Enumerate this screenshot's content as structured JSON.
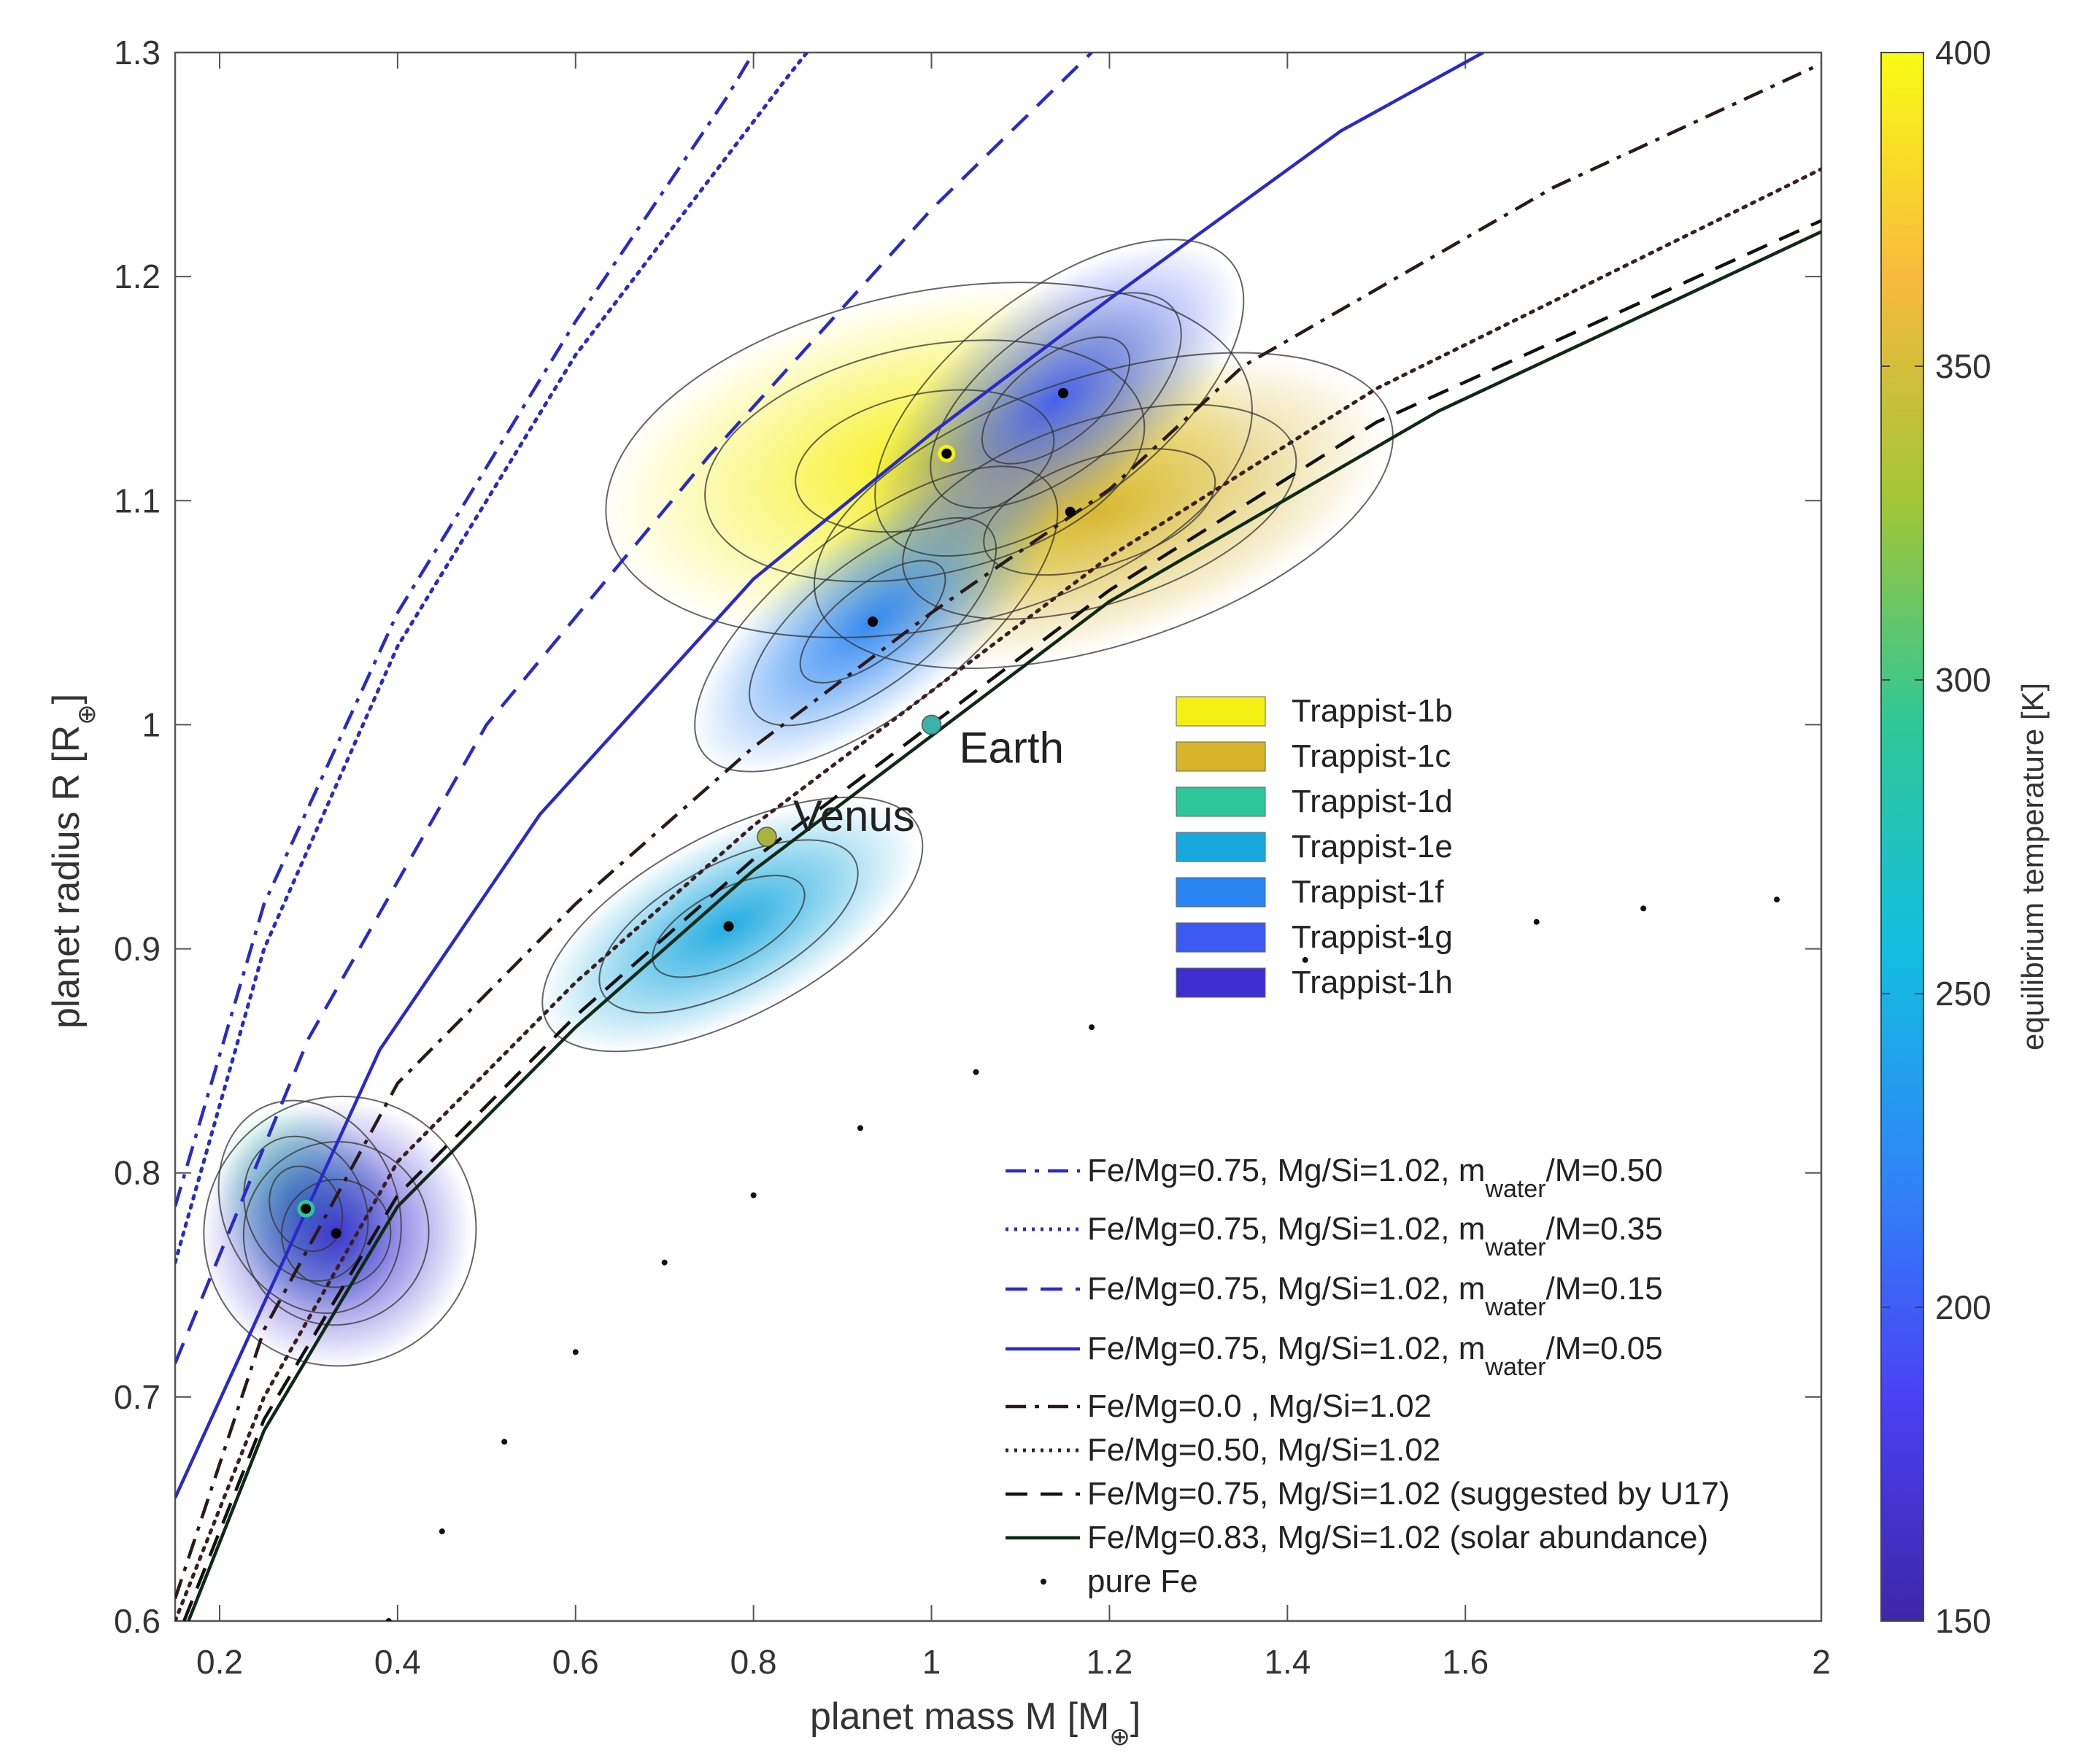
{
  "chart_data": {
    "type": "line",
    "xlabel": "planet mass M [M",
    "xlabel_sub": "⊕",
    "xlabel_end": "]",
    "ylabel": "planet radius R [R",
    "ylabel_sub": "⊕",
    "ylabel_end": "]",
    "xlim": [
      0.15,
      2.0
    ],
    "ylim": [
      0.6,
      1.3
    ],
    "xticks": [
      0.2,
      0.4,
      0.6,
      0.8,
      1.0,
      1.2,
      1.4,
      1.6,
      2.0
    ],
    "xtick_labels": [
      "0.2",
      "0.4",
      "0.6",
      "0.8",
      "1",
      "1.2",
      "1.4",
      "1.6",
      "2"
    ],
    "yticks": [
      0.6,
      0.7,
      0.8,
      0.9,
      1.0,
      1.1,
      1.2,
      1.3
    ],
    "ytick_labels": [
      "0.6",
      "0.7",
      "0.8",
      "0.9",
      "1",
      "1.1",
      "1.2",
      "1.3"
    ],
    "colorbar": {
      "label": "equilibrium temperature [K]",
      "range": [
        150,
        400
      ],
      "ticks": [
        "150",
        "200",
        "250",
        "300",
        "350",
        "400"
      ],
      "colormap": [
        "#3e26a8",
        "#4a41f4",
        "#2e87f7",
        "#13bee0",
        "#2ec797",
        "#a2c636",
        "#f7ba3d",
        "#f9fb15"
      ]
    },
    "series": [
      {
        "name": "Fe/Mg=0.75, Mg/Si=1.02, m",
        "sub": "water",
        "suffix": "/M=0.50",
        "style": "dashdot",
        "color": "#2a2ac8",
        "points": [
          [
            0.15,
            0.785
          ],
          [
            0.25,
            0.92
          ],
          [
            0.4,
            1.05
          ],
          [
            0.6,
            1.18
          ],
          [
            0.77,
            1.28
          ],
          [
            0.8,
            1.3
          ]
        ]
      },
      {
        "name": "Fe/Mg=0.75, Mg/Si=1.02, m",
        "sub": "water",
        "suffix": "/M=0.35",
        "style": "dotted",
        "color": "#2a2ac8",
        "points": [
          [
            0.15,
            0.76
          ],
          [
            0.25,
            0.9
          ],
          [
            0.4,
            1.035
          ],
          [
            0.6,
            1.165
          ],
          [
            0.84,
            1.29
          ],
          [
            0.86,
            1.3
          ]
        ]
      },
      {
        "name": "Fe/Mg=0.75, Mg/Si=1.02, m",
        "sub": "water",
        "suffix": "/M=0.15",
        "style": "dashed",
        "color": "#2a2ac8",
        "points": [
          [
            0.15,
            0.715
          ],
          [
            0.3,
            0.86
          ],
          [
            0.5,
            1.0
          ],
          [
            0.75,
            1.12
          ],
          [
            1.0,
            1.23
          ],
          [
            1.18,
            1.3
          ]
        ]
      },
      {
        "name": "Fe/Mg=0.75, Mg/Si=1.02, m",
        "sub": "water",
        "suffix": "/M=0.05",
        "style": "solid",
        "color": "#2a2ac8",
        "points": [
          [
            0.15,
            0.655
          ],
          [
            0.38,
            0.855
          ],
          [
            0.56,
            0.96
          ],
          [
            0.8,
            1.065
          ],
          [
            1.0,
            1.13
          ],
          [
            1.2,
            1.19
          ],
          [
            1.46,
            1.265
          ],
          [
            1.62,
            1.3
          ]
        ]
      },
      {
        "name": "Fe/Mg=0.0 , Mg/Si=1.02",
        "style": "dashdot",
        "color": "#2a1a1a",
        "points": [
          [
            0.15,
            0.61
          ],
          [
            0.25,
            0.73
          ],
          [
            0.4,
            0.84
          ],
          [
            0.6,
            0.92
          ],
          [
            0.8,
            0.99
          ],
          [
            1.0,
            1.05
          ],
          [
            1.2,
            1.105
          ],
          [
            1.35,
            1.16
          ],
          [
            1.7,
            1.24
          ],
          [
            2.0,
            1.295
          ]
        ]
      },
      {
        "name": "Fe/Mg=0.50, Mg/Si=1.02",
        "style": "dotted",
        "color": "#3a2020",
        "points": [
          [
            0.15,
            0.6
          ],
          [
            0.25,
            0.7
          ],
          [
            0.4,
            0.805
          ],
          [
            0.6,
            0.885
          ],
          [
            0.8,
            0.955
          ],
          [
            1.0,
            1.015
          ],
          [
            1.2,
            1.075
          ],
          [
            1.5,
            1.15
          ],
          [
            2.0,
            1.248
          ]
        ]
      },
      {
        "name": "Fe/Mg=0.75, Mg/Si=1.02 (suggested by U17)",
        "style": "dashed",
        "color": "#111111",
        "points": [
          [
            0.16,
            0.6
          ],
          [
            0.25,
            0.69
          ],
          [
            0.4,
            0.79
          ],
          [
            0.6,
            0.87
          ],
          [
            0.8,
            0.94
          ],
          [
            1.0,
            1.0
          ],
          [
            1.2,
            1.06
          ],
          [
            1.5,
            1.135
          ],
          [
            2.0,
            1.225
          ]
        ]
      },
      {
        "name": "Fe/Mg=0.83, Mg/Si=1.02 (solar abundance)",
        "style": "solid",
        "color": "#0f2a14",
        "points": [
          [
            0.165,
            0.6
          ],
          [
            0.25,
            0.685
          ],
          [
            0.4,
            0.785
          ],
          [
            0.6,
            0.865
          ],
          [
            0.8,
            0.935
          ],
          [
            1.0,
            0.995
          ],
          [
            1.2,
            1.055
          ],
          [
            1.57,
            1.14
          ],
          [
            2.0,
            1.22
          ]
        ]
      },
      {
        "name": "pure Fe",
        "style": "markers",
        "color": "#111111",
        "points": [
          [
            0.39,
            0.6
          ],
          [
            0.45,
            0.64
          ],
          [
            0.52,
            0.68
          ],
          [
            0.6,
            0.72
          ],
          [
            0.7,
            0.76
          ],
          [
            0.8,
            0.79
          ],
          [
            0.92,
            0.82
          ],
          [
            1.05,
            0.845
          ],
          [
            1.18,
            0.865
          ],
          [
            1.3,
            0.88
          ],
          [
            1.42,
            0.895
          ],
          [
            1.55,
            0.905
          ],
          [
            1.68,
            0.912
          ],
          [
            1.8,
            0.918
          ],
          [
            1.95,
            0.922
          ]
        ]
      }
    ],
    "planets": [
      {
        "name": "Trappist-1b",
        "color": "#f5f014",
        "mass": 1.017,
        "radius": 1.121
      },
      {
        "name": "Trappist-1c",
        "color": "#d6b52b",
        "mass": 1.156,
        "radius": 1.095
      },
      {
        "name": "Trappist-1d",
        "color": "#2ec79a",
        "mass": 0.297,
        "radius": 0.784
      },
      {
        "name": "Trappist-1e",
        "color": "#18a8df",
        "mass": 0.772,
        "radius": 0.91
      },
      {
        "name": "Trappist-1f",
        "color": "#2a84f2",
        "mass": 0.934,
        "radius": 1.046
      },
      {
        "name": "Trappist-1g",
        "color": "#3d5af0",
        "mass": 1.148,
        "radius": 1.148
      },
      {
        "name": "Trappist-1h",
        "color": "#3d2fd0",
        "mass": 0.331,
        "radius": 0.773
      }
    ],
    "reference_points": [
      {
        "name": "Earth",
        "mass": 1.0,
        "radius": 1.0,
        "color": "#3bb3a8"
      },
      {
        "name": "Venus",
        "mass": 0.815,
        "radius": 0.95,
        "color": "#a8b43a"
      }
    ]
  }
}
